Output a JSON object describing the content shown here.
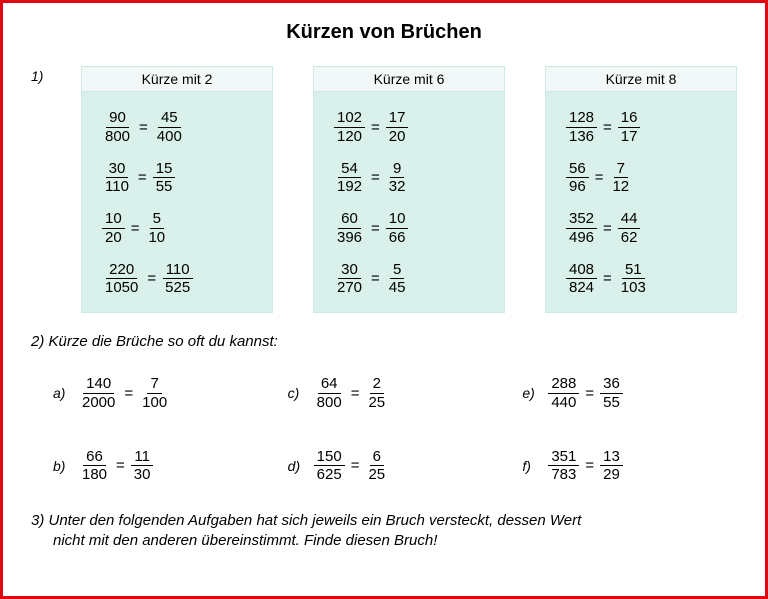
{
  "title": "Kürzen von Brüchen",
  "colors": {
    "frame_border": "#e30613",
    "box_bg": "#d9f0eb",
    "box_header_bg": "#f2f8f7",
    "text": "#000000"
  },
  "ex1": {
    "label": "1)",
    "boxes": [
      {
        "header": "Kürze mit 2",
        "equations": [
          {
            "a_num": "90",
            "a_den": "800",
            "b_num": "45",
            "b_den": "400"
          },
          {
            "a_num": "30",
            "a_den": "110",
            "b_num": "15",
            "b_den": "55"
          },
          {
            "a_num": "10",
            "a_den": "20",
            "b_num": "5",
            "b_den": "10"
          },
          {
            "a_num": "220",
            "a_den": "1050",
            "b_num": "110",
            "b_den": "525"
          }
        ]
      },
      {
        "header": "Kürze mit 6",
        "equations": [
          {
            "a_num": "102",
            "a_den": "120",
            "b_num": "17",
            "b_den": "20"
          },
          {
            "a_num": "54",
            "a_den": "192",
            "b_num": "9",
            "b_den": "32"
          },
          {
            "a_num": "60",
            "a_den": "396",
            "b_num": "10",
            "b_den": "66"
          },
          {
            "a_num": "30",
            "a_den": "270",
            "b_num": "5",
            "b_den": "45"
          }
        ]
      },
      {
        "header": "Kürze mit 8",
        "equations": [
          {
            "a_num": "128",
            "a_den": "136",
            "b_num": "16",
            "b_den": "17"
          },
          {
            "a_num": "56",
            "a_den": "96",
            "b_num": "7",
            "b_den": "12"
          },
          {
            "a_num": "352",
            "a_den": "496",
            "b_num": "44",
            "b_den": "62"
          },
          {
            "a_num": "408",
            "a_den": "824",
            "b_num": "51",
            "b_den": "103"
          }
        ]
      }
    ]
  },
  "ex2": {
    "instruction": "2) Kürze die Brüche so oft du kannst:",
    "items": [
      {
        "label": "a)",
        "a_num": "140",
        "a_den": "2000",
        "b_num": "7",
        "b_den": "100"
      },
      {
        "label": "c)",
        "a_num": "64",
        "a_den": "800",
        "b_num": "2",
        "b_den": "25"
      },
      {
        "label": "e)",
        "a_num": "288",
        "a_den": "440",
        "b_num": "36",
        "b_den": "55"
      },
      {
        "label": "b)",
        "a_num": "66",
        "a_den": "180",
        "b_num": "11",
        "b_den": "30"
      },
      {
        "label": "d)",
        "a_num": "150",
        "a_den": "625",
        "b_num": "6",
        "b_den": "25"
      },
      {
        "label": "f)",
        "a_num": "351",
        "a_den": "783",
        "b_num": "13",
        "b_den": "29"
      }
    ]
  },
  "ex3": {
    "line1": "3) Unter den folgenden Aufgaben hat sich jeweils ein Bruch versteckt, dessen Wert",
    "line2": "nicht mit den anderen übereinstimmt. Finde diesen Bruch!"
  }
}
